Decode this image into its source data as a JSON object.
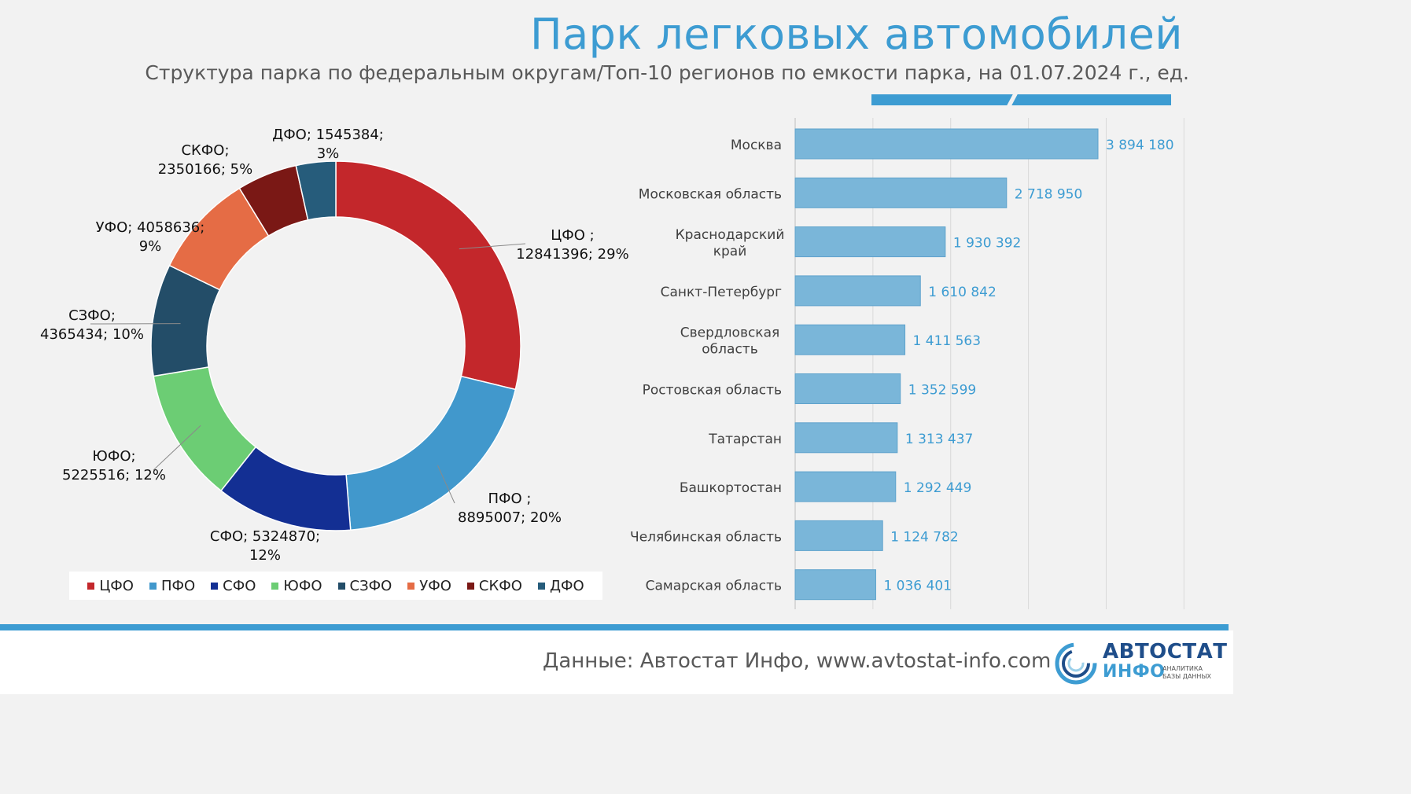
{
  "header": {
    "title": "Парк легковых автомобилей",
    "subtitle": "Структура парка по федеральным округам/Топ-10 регионов по емкости парка, на 01.07.2024 г., ед."
  },
  "colors": {
    "accent": "#3d9cd2",
    "bar": "#7ab6d9"
  },
  "chart_data": [
    {
      "type": "donut",
      "title": "Структура парка по федеральным округам",
      "unit": "ед.",
      "slices": [
        {
          "name": "ЦФО",
          "value": 12841396,
          "percent": "29%",
          "color": "#c3272b",
          "label_lines": [
            "ЦФО ;",
            "12841396; 29%"
          ]
        },
        {
          "name": "ПФО",
          "value": 8895007,
          "percent": "20%",
          "color": "#4198cc",
          "label_lines": [
            "ПФО ;",
            "8895007; 20%"
          ]
        },
        {
          "name": "СФО",
          "value": 5324870,
          "percent": "12%",
          "color": "#132f93",
          "label_lines": [
            "СФО; 5324870;",
            "12%"
          ]
        },
        {
          "name": "ЮФО",
          "value": 5225516,
          "percent": "12%",
          "color": "#6ccd74",
          "label_lines": [
            "ЮФО;",
            "5225516; 12%"
          ]
        },
        {
          "name": "СЗФО",
          "value": 4365434,
          "percent": "10%",
          "color": "#234d68",
          "label_lines": [
            "СЗФО;",
            "4365434; 10%"
          ]
        },
        {
          "name": "УФО",
          "value": 4058636,
          "percent": "9%",
          "color": "#e56c45",
          "label_lines": [
            "УФО; 4058636;",
            "9%"
          ]
        },
        {
          "name": "СКФО",
          "value": 2350166,
          "percent": "5%",
          "color": "#7a1815",
          "label_lines": [
            "СКФО;",
            "2350166; 5%"
          ]
        },
        {
          "name": "ДФО",
          "value": 1545384,
          "percent": "3%",
          "color": "#265c7b",
          "label_lines": [
            "ДФО; 1545384;",
            "3%"
          ]
        }
      ],
      "legend_position": "bottom"
    },
    {
      "type": "bar",
      "orientation": "horizontal",
      "title": "Топ-10 регионов по емкости парка",
      "unit": "ед.",
      "categories": [
        [
          "Москва"
        ],
        [
          "Московская область"
        ],
        [
          "Краснодарский",
          "край"
        ],
        [
          "Санкт-Петербург"
        ],
        [
          "Свердловская",
          "область"
        ],
        [
          "Ростовская область"
        ],
        [
          "Татарстан"
        ],
        [
          "Башкортостан"
        ],
        [
          "Челябинская область"
        ],
        [
          "Самарская область"
        ]
      ],
      "values": [
        3894180,
        2718950,
        1930392,
        1610842,
        1411563,
        1352599,
        1313437,
        1292449,
        1124782,
        1036401
      ],
      "value_labels": [
        "3 894 180",
        "2 718 950",
        "1 930 392",
        "1 610 842",
        "1 411 563",
        "1 352 599",
        "1 313 437",
        "1 292 449",
        "1 124 782",
        "1 036 401"
      ],
      "xlim": [
        0,
        5000000
      ],
      "grid": true
    }
  ],
  "footer": {
    "source": "Данные: Автостат Инфо, www.avtostat-info.com"
  },
  "logo": {
    "word1": "АВТОСТАТ",
    "word2": "ИНФО",
    "tagline": [
      "АНАЛИТИКА",
      "БАЗЫ ДАННЫХ"
    ]
  }
}
